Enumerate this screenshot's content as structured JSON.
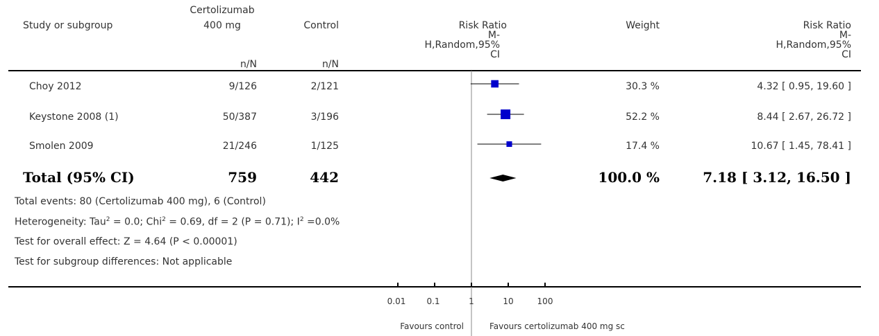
{
  "headers": {
    "study": "Study or subgroup",
    "treatment_top": "Certolizumab",
    "treatment_bottom": "400 mg",
    "control": "Control",
    "treatment_nN": "n/N",
    "control_nN": "n/N",
    "rr_plot": [
      "Risk Ratio",
      "M-",
      "H,Random,95%",
      "CI"
    ],
    "weight": "Weight",
    "rr_text": [
      "Risk Ratio",
      "M-",
      "H,Random,95%",
      "CI"
    ]
  },
  "rows": [
    {
      "study": "Choy 2012",
      "treatment": "9/126",
      "control": "2/121",
      "weight": "30.3 %",
      "ci": "4.32 [ 0.95, 19.60 ]"
    },
    {
      "study": "Keystone 2008 (1)",
      "treatment": "50/387",
      "control": "3/196",
      "weight": "52.2 %",
      "ci": "8.44 [ 2.67, 26.72 ]"
    },
    {
      "study": "Smolen 2009",
      "treatment": "21/246",
      "control": "1/125",
      "weight": "17.4 %",
      "ci": "10.67 [ 1.45, 78.41 ]"
    }
  ],
  "total": {
    "label": "Total (95% CI)",
    "treatment": "759",
    "control": "442",
    "weight": "100.0 %",
    "ci": "7.18 [ 3.12, 16.50 ]"
  },
  "footnotes": {
    "events": "Total events: 80 (Certolizumab 400 mg), 6 (Control)",
    "heterogeneity_a": "Heterogeneity: Tau",
    "heterogeneity_b": " = 0.0; Chi",
    "heterogeneity_c": " = 0.69, df = 2 (P = 0.71); I",
    "heterogeneity_d": " =0.0%",
    "sup2": "2",
    "overall": "Test for overall effect: Z = 4.64 (P < 0.00001)",
    "subgroup": "Test for subgroup differences: Not applicable"
  },
  "axis": {
    "tick_labels": [
      "0.01",
      "0.1",
      "1",
      "10",
      "100"
    ],
    "favours_left": "Favours control",
    "favours_right": "Favours certolizumab 400 mg sc"
  },
  "colors": {
    "study_marker": "#0000cc",
    "diamond": "#000000"
  },
  "chart_data": {
    "type": "forest",
    "scale": "log",
    "xlim": [
      0.01,
      100
    ],
    "ticks": [
      0.01,
      0.1,
      1,
      10,
      100
    ],
    "studies": [
      {
        "name": "Choy 2012",
        "rr": 4.32,
        "lo": 0.95,
        "hi": 19.6,
        "weight": 30.3
      },
      {
        "name": "Keystone 2008 (1)",
        "rr": 8.44,
        "lo": 2.67,
        "hi": 26.72,
        "weight": 52.2
      },
      {
        "name": "Smolen 2009",
        "rr": 10.67,
        "lo": 1.45,
        "hi": 78.41,
        "weight": 17.4
      }
    ],
    "pooled": {
      "rr": 7.18,
      "lo": 3.12,
      "hi": 16.5
    }
  }
}
